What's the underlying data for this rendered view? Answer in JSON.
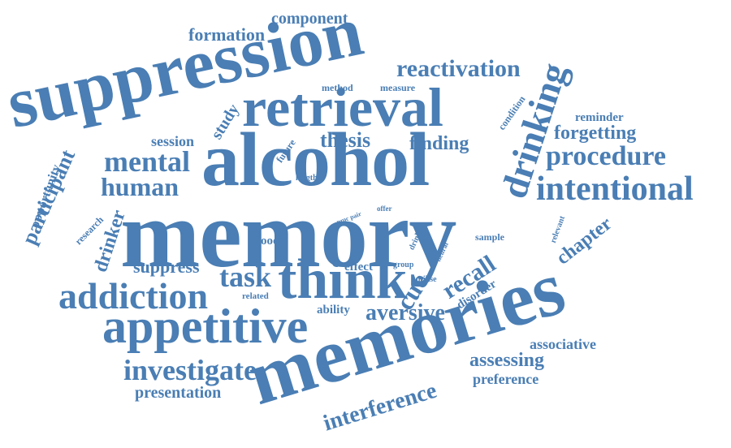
{
  "colors": {
    "word": "#4a7eb4",
    "background": "#ffffff"
  },
  "words": [
    {
      "text": "memory",
      "weight": 100
    },
    {
      "text": "alcohol",
      "weight": 85
    },
    {
      "text": "memories",
      "weight": 85
    },
    {
      "text": "suppression",
      "weight": 80
    },
    {
      "text": "retrieval",
      "weight": 65
    },
    {
      "text": "think",
      "weight": 62
    },
    {
      "text": "appetitive",
      "weight": 55
    },
    {
      "text": "addiction",
      "weight": 42
    },
    {
      "text": "drinking",
      "weight": 40
    },
    {
      "text": "intentional",
      "weight": 38
    },
    {
      "text": "investigate",
      "weight": 34
    },
    {
      "text": "mental",
      "weight": 32
    },
    {
      "text": "procedure",
      "weight": 32
    },
    {
      "text": "human",
      "weight": 30
    },
    {
      "text": "task",
      "weight": 30
    },
    {
      "text": "recall",
      "weight": 28
    },
    {
      "text": "cue",
      "weight": 28
    },
    {
      "text": "aversive",
      "weight": 27
    },
    {
      "text": "reactivation",
      "weight": 27
    },
    {
      "text": "interference",
      "weight": 26
    },
    {
      "text": "participant",
      "weight": 24
    },
    {
      "text": "thesis",
      "weight": 23
    },
    {
      "text": "forgetting",
      "weight": 22
    },
    {
      "text": "formation",
      "weight": 22
    },
    {
      "text": "chapter",
      "weight": 22
    },
    {
      "text": "assessing",
      "weight": 22
    },
    {
      "text": "finding",
      "weight": 21
    },
    {
      "text": "drinker",
      "weight": 21
    },
    {
      "text": "suppress",
      "weight": 20
    },
    {
      "text": "component",
      "weight": 19
    },
    {
      "text": "study",
      "weight": 19
    },
    {
      "text": "presentation",
      "weight": 18
    },
    {
      "text": "preference",
      "weight": 17
    },
    {
      "text": "associative",
      "weight": 17
    },
    {
      "text": "session",
      "weight": 17
    },
    {
      "text": "opportunity",
      "weight": 16
    },
    {
      "text": "reminder",
      "weight": 15
    },
    {
      "text": "disorder",
      "weight": 14
    },
    {
      "text": "ability",
      "weight": 14
    },
    {
      "text": "effect",
      "weight": 14
    },
    {
      "text": "food",
      "weight": 14
    },
    {
      "text": "sample",
      "weight": 12
    },
    {
      "text": "condition",
      "weight": 12
    },
    {
      "text": "research",
      "weight": 12
    },
    {
      "text": "method",
      "weight": 11
    },
    {
      "text": "measure",
      "weight": 11
    },
    {
      "text": "future",
      "weight": 11
    },
    {
      "text": "related",
      "weight": 10
    },
    {
      "text": "utilise",
      "weight": 10
    },
    {
      "text": "group",
      "weight": 10
    },
    {
      "text": "relevant",
      "weight": 10
    },
    {
      "text": "length",
      "weight": 10
    },
    {
      "text": "drink",
      "weight": 10
    },
    {
      "text": "neural",
      "weight": 9
    },
    {
      "text": "offer",
      "weight": 9
    },
    {
      "text": "proc pair",
      "weight": 8
    }
  ]
}
